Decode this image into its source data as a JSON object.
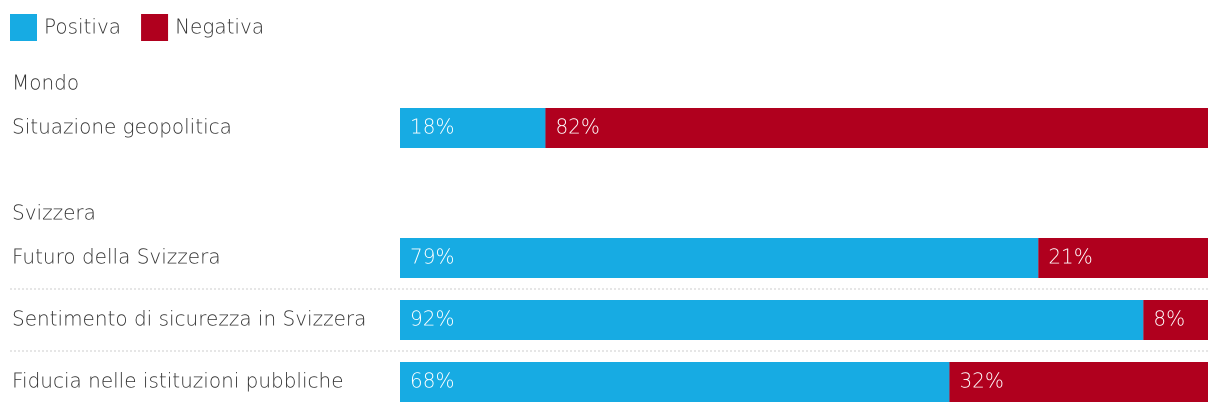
{
  "chart_data": {
    "type": "stacked-bar",
    "orientation": "horizontal",
    "xlim": [
      0,
      100
    ],
    "groups": [
      {
        "title": "Mondo",
        "categories": [
          "Situazione geopolitica"
        ]
      },
      {
        "title": "Svizzera",
        "categories": [
          "Futuro della Svizzera",
          "Sentimento di sicurezza in Svizzera",
          "Fiducia nelle istituzioni pubbliche"
        ]
      }
    ],
    "series": [
      {
        "name": "Positiva",
        "color": "#17abe3",
        "values": [
          18,
          79,
          92,
          68
        ],
        "value_labels": [
          "18%",
          "79%",
          "92%",
          "68%"
        ]
      },
      {
        "name": "Negativa",
        "color": "#b0001e",
        "values": [
          82,
          21,
          8,
          32
        ],
        "value_labels": [
          "82%",
          "21%",
          "8%",
          "32%"
        ]
      }
    ]
  }
}
